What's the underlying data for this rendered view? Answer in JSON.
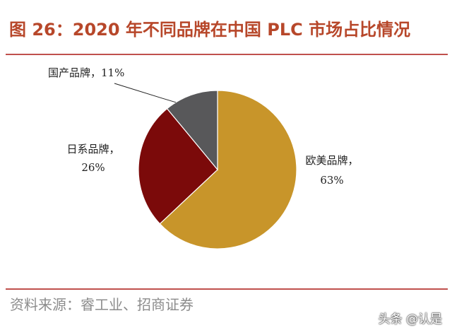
{
  "figure": {
    "title": "图 26：2020 年不同品牌在中国 PLC 市场占比情况",
    "source": "资料来源：睿工业、招商证券",
    "watermark": "头条 @认是"
  },
  "chart_data": {
    "type": "pie",
    "title": "图 26：2020 年不同品牌在中国 PLC 市场占比情况",
    "slices": [
      {
        "name": "欧美品牌",
        "value": 63,
        "label": "63%",
        "color": "#C8952A"
      },
      {
        "name": "日系品牌",
        "value": 26,
        "label": "26%",
        "color": "#7B0A0A"
      },
      {
        "name": "国产品牌",
        "value": 11,
        "label": "11%",
        "color": "#58585A"
      }
    ],
    "start_angle_deg": 0,
    "direction": "clockwise",
    "legend": "none"
  }
}
